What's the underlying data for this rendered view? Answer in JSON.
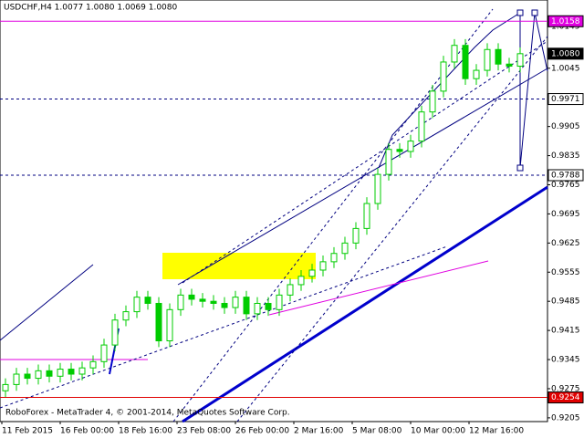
{
  "chart_data": {
    "type": "candlestick",
    "title": "USDCHF,H4 1.0077 1.0080 1.0069 1.0080",
    "footer": "RoboForex - MetaTrader 4, © 2001-2014, MetaQuotes Software Corp.",
    "categories": [
      "11 Feb 2015",
      "16 Feb 00:00",
      "18 Feb 16:00",
      "23 Feb 08:00",
      "26 Feb 00:00",
      "2 Mar 16:00",
      "5 Mar 08:00",
      "10 Mar 00:00",
      "12 Mar 16:00"
    ],
    "open": [
      0.927,
      0.9285,
      0.931,
      0.93,
      0.9318,
      0.9305,
      0.9322,
      0.931,
      0.9325,
      0.934,
      0.938,
      0.944,
      0.946,
      0.9495,
      0.948,
      0.939,
      0.9465,
      0.95,
      0.949,
      0.9485,
      0.948,
      0.947,
      0.9495,
      0.9455,
      0.948,
      0.9465,
      0.95,
      0.9525,
      0.9545,
      0.956,
      0.958,
      0.96,
      0.9625,
      0.966,
      0.972,
      0.979,
      0.985,
      0.9845,
      0.987,
      0.994,
      0.999,
      1.006,
      1.01,
      1.002,
      1.004,
      1.009,
      1.0055,
      1.005
    ],
    "high": [
      0.93,
      0.9325,
      0.9325,
      0.9333,
      0.9333,
      0.9337,
      0.9337,
      0.934,
      0.9355,
      0.9395,
      0.9455,
      0.9475,
      0.951,
      0.951,
      0.9495,
      0.948,
      0.9515,
      0.9515,
      0.9505,
      0.95,
      0.9495,
      0.951,
      0.951,
      0.9495,
      0.9495,
      0.9515,
      0.954,
      0.956,
      0.9575,
      0.9595,
      0.9615,
      0.964,
      0.9675,
      0.9735,
      0.9805,
      0.9865,
      0.9865,
      0.9885,
      0.9955,
      1.0005,
      1.0075,
      1.0115,
      1.0115,
      1.0055,
      1.0105,
      1.0105,
      1.007,
      1.0095
    ],
    "low": [
      0.9255,
      0.927,
      0.9285,
      0.9285,
      0.929,
      0.929,
      0.9295,
      0.9295,
      0.931,
      0.9325,
      0.9365,
      0.9425,
      0.9445,
      0.9465,
      0.9375,
      0.9375,
      0.945,
      0.9475,
      0.947,
      0.9465,
      0.9455,
      0.9455,
      0.944,
      0.944,
      0.945,
      0.945,
      0.9485,
      0.951,
      0.953,
      0.9545,
      0.9565,
      0.9585,
      0.961,
      0.9645,
      0.9705,
      0.9775,
      0.983,
      0.983,
      0.9855,
      0.9925,
      0.9975,
      1.0045,
      1.0005,
      1.0005,
      1.0025,
      1.004,
      1.0035,
      1.0035
    ],
    "close": [
      0.9285,
      0.931,
      0.93,
      0.9318,
      0.9305,
      0.9322,
      0.931,
      0.9325,
      0.934,
      0.938,
      0.944,
      0.946,
      0.9495,
      0.948,
      0.939,
      0.9465,
      0.95,
      0.949,
      0.9485,
      0.948,
      0.947,
      0.9495,
      0.9455,
      0.948,
      0.9465,
      0.95,
      0.9525,
      0.9545,
      0.956,
      0.958,
      0.96,
      0.9625,
      0.966,
      0.972,
      0.979,
      0.985,
      0.9845,
      0.987,
      0.994,
      0.999,
      1.006,
      1.01,
      1.002,
      1.004,
      1.009,
      1.0055,
      1.005,
      1.008
    ],
    "up_color": "#00cc00",
    "down_color": "#00cc00",
    "ylim": [
      0.9196,
      1.0209
    ],
    "yticks": [
      1.0145,
      1.0045,
      0.9905,
      0.9835,
      0.9765,
      0.9695,
      0.9625,
      0.9555,
      0.9485,
      0.9415,
      0.9345,
      0.9275,
      0.9205
    ],
    "levels": [
      {
        "value": 1.0158,
        "color": "#e000e0",
        "dashed": false,
        "label_bg": "#e000e0"
      },
      {
        "value": {
          "value": 1.008,
          "label": "1.0080"
        },
        "color": "#000000",
        "dashed": false,
        "label_bg": "#000000",
        "hidden_line": true
      },
      {
        "value": 0.9971,
        "color": "#000080",
        "dashed": true,
        "label_bg": "#ffffff"
      },
      {
        "value": 0.9788,
        "color": "#000080",
        "dashed": true,
        "label_bg": "#ffffff"
      },
      {
        "value": 0.9254,
        "color": "#e00000",
        "dashed": false,
        "label_bg": "#e00000"
      }
    ]
  }
}
